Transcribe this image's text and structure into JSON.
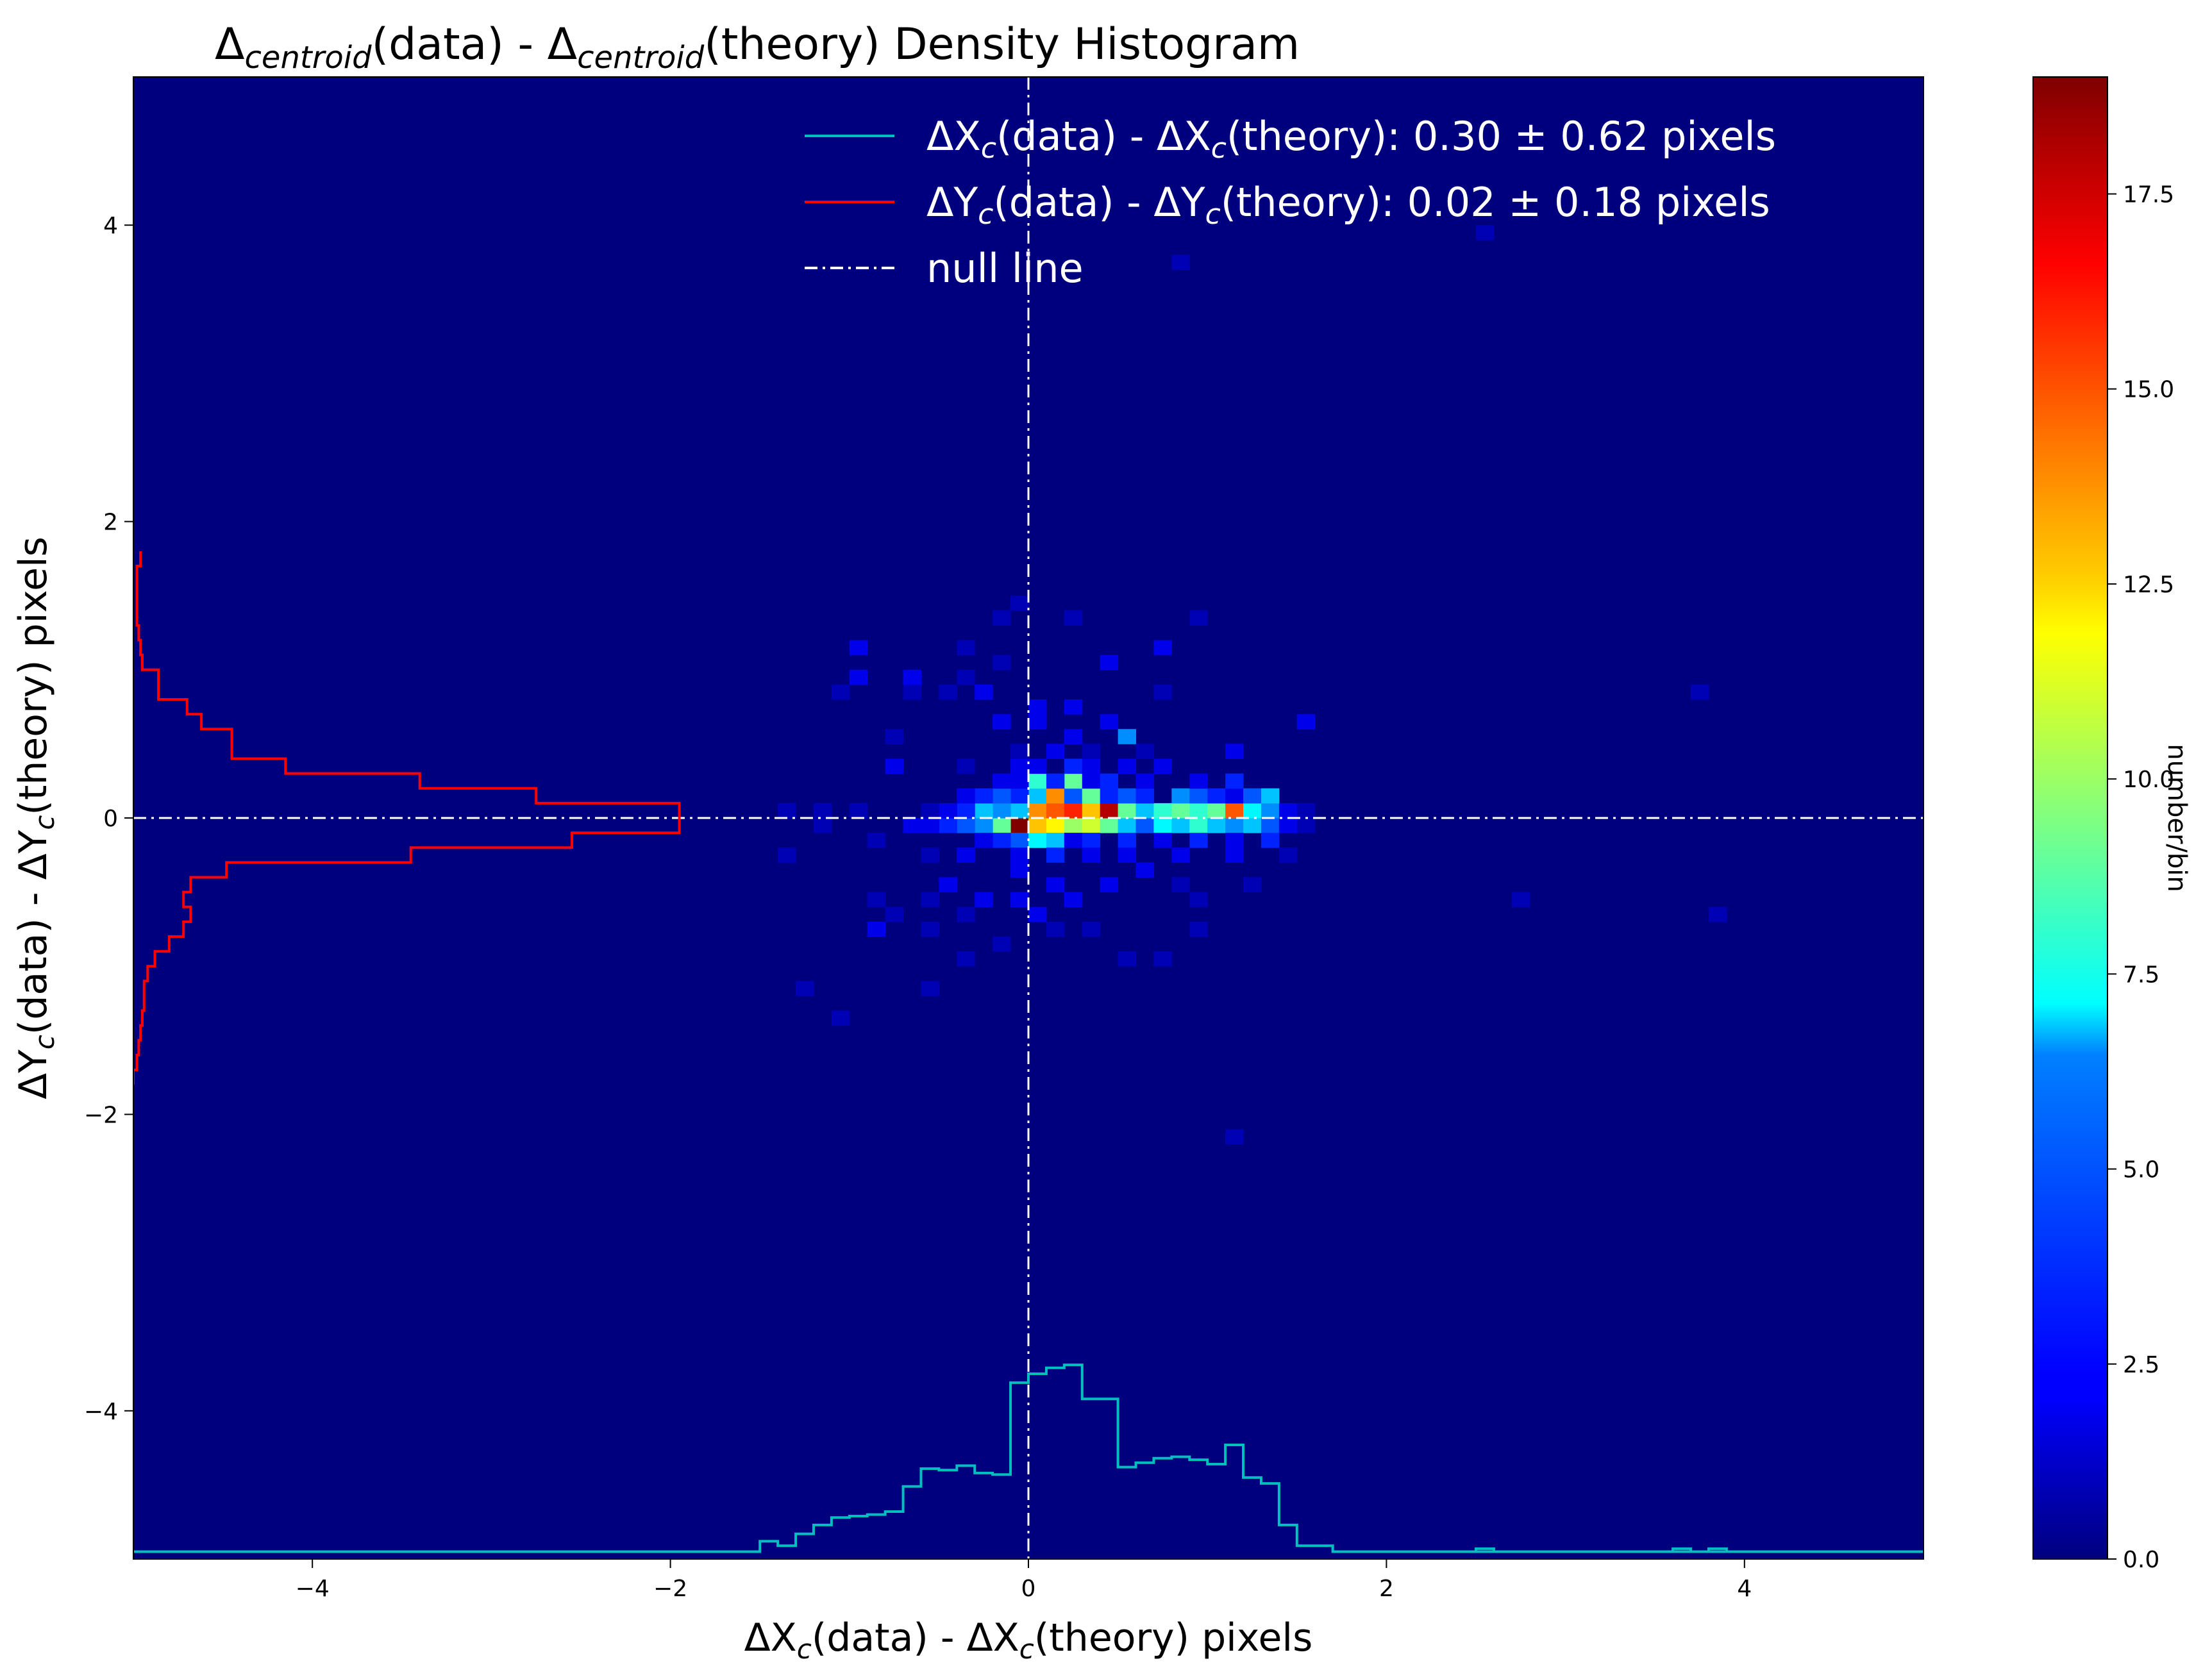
{
  "chart_data": {
    "type": "heatmap",
    "title_parts": {
      "delta": "Δ",
      "subscript": "centroid",
      "part1": "(data) - ",
      "part2": "(theory) Density Histogram"
    },
    "xlabel_parts": {
      "prefix": "ΔX",
      "sub": "c",
      "mid": "(data) - ΔX",
      "suffix": "(theory) pixels"
    },
    "ylabel_parts": {
      "prefix": "ΔY",
      "sub": "c",
      "mid": "(data) - ΔY",
      "suffix": "(theory) pixels"
    },
    "xlim": [
      -5,
      5
    ],
    "ylim": [
      -5,
      5
    ],
    "xticks": [
      -4,
      -2,
      0,
      2,
      4
    ],
    "xtick_labels": [
      "−4",
      "−2",
      "0",
      "2",
      "4"
    ],
    "yticks": [
      -4,
      -2,
      0,
      2,
      4
    ],
    "ytick_labels": [
      "−4",
      "−2",
      "0",
      "2",
      "4"
    ],
    "colormap": "jet",
    "colorbar": {
      "label": "number/bin",
      "range": [
        0,
        19
      ],
      "ticks": [
        0.0,
        2.5,
        5.0,
        7.5,
        10.0,
        12.5,
        15.0,
        17.5
      ],
      "tick_labels": [
        "0.0",
        "2.5",
        "5.0",
        "7.5",
        "10.0",
        "12.5",
        "15.0",
        "17.5"
      ]
    },
    "legend": {
      "position": "top-right",
      "entries": [
        {
          "prefix": "ΔX",
          "sub": "c",
          "mid": "(data) - ΔX",
          "sub2": "c",
          "rest": "(theory):   0.30 ±  0.62 pixels",
          "color": "#00bfbf",
          "style": "solid"
        },
        {
          "prefix": "ΔY",
          "sub": "c",
          "mid": "(data) - ΔY",
          "sub2": "c",
          "rest": "(theory):   0.02 ±  0.18 pixels",
          "color": "#ff0000",
          "style": "solid"
        },
        {
          "prefix": "null line",
          "sub": "",
          "mid": "",
          "sub2": "",
          "rest": "",
          "color": "#ffffff",
          "style": "dashdot"
        }
      ]
    },
    "null_line": {
      "x": 0,
      "y": 0,
      "color": "#ffffff"
    },
    "bin_width": 0.1,
    "bins": [
      [
        -0.05,
        -0.05,
        19
      ],
      [
        0.05,
        -0.05,
        13
      ],
      [
        0.15,
        -0.05,
        12
      ],
      [
        0.25,
        -0.05,
        10
      ],
      [
        0.35,
        -0.05,
        11
      ],
      [
        0.45,
        -0.05,
        9
      ],
      [
        -0.15,
        -0.05,
        9
      ],
      [
        -0.25,
        -0.05,
        5
      ],
      [
        -0.35,
        -0.05,
        4
      ],
      [
        -0.45,
        -0.05,
        3
      ],
      [
        -0.55,
        -0.05,
        2
      ],
      [
        -0.65,
        -0.05,
        2
      ],
      [
        0.55,
        -0.05,
        6
      ],
      [
        0.65,
        -0.05,
        4
      ],
      [
        0.75,
        -0.05,
        7
      ],
      [
        0.85,
        -0.05,
        6
      ],
      [
        0.95,
        -0.05,
        8
      ],
      [
        1.05,
        -0.05,
        6
      ],
      [
        1.15,
        -0.05,
        5
      ],
      [
        1.25,
        -0.05,
        6
      ],
      [
        1.35,
        -0.05,
        4
      ],
      [
        1.45,
        -0.05,
        2
      ],
      [
        1.55,
        -0.05,
        1
      ],
      [
        0.05,
        0.05,
        14
      ],
      [
        0.15,
        0.05,
        15
      ],
      [
        0.25,
        0.05,
        16
      ],
      [
        0.35,
        0.05,
        13
      ],
      [
        0.45,
        0.05,
        18
      ],
      [
        0.55,
        0.05,
        9
      ],
      [
        -0.05,
        0.05,
        6
      ],
      [
        -0.15,
        0.05,
        5
      ],
      [
        -0.25,
        0.05,
        6
      ],
      [
        -0.35,
        0.05,
        3
      ],
      [
        -0.45,
        0.05,
        2
      ],
      [
        -0.55,
        0.05,
        1
      ],
      [
        0.65,
        0.05,
        6
      ],
      [
        0.75,
        0.05,
        8
      ],
      [
        0.85,
        0.05,
        9
      ],
      [
        0.95,
        0.05,
        8
      ],
      [
        1.05,
        0.05,
        9
      ],
      [
        1.15,
        0.05,
        15
      ],
      [
        1.25,
        0.05,
        7
      ],
      [
        1.35,
        0.05,
        5
      ],
      [
        1.45,
        0.05,
        2
      ],
      [
        1.55,
        0.05,
        1
      ],
      [
        0.05,
        0.15,
        6
      ],
      [
        0.15,
        0.15,
        14
      ],
      [
        0.25,
        0.15,
        4
      ],
      [
        0.35,
        0.15,
        9
      ],
      [
        0.45,
        0.15,
        3
      ],
      [
        -0.05,
        0.15,
        3
      ],
      [
        -0.15,
        0.15,
        4
      ],
      [
        -0.25,
        0.15,
        3
      ],
      [
        -0.35,
        0.15,
        2
      ],
      [
        0.55,
        0.15,
        4
      ],
      [
        0.65,
        0.15,
        3
      ],
      [
        0.85,
        0.15,
        5
      ],
      [
        0.95,
        0.15,
        4
      ],
      [
        1.05,
        0.15,
        3
      ],
      [
        1.15,
        0.15,
        2
      ],
      [
        1.25,
        0.15,
        4
      ],
      [
        1.35,
        0.15,
        6
      ],
      [
        0.05,
        0.25,
        8
      ],
      [
        0.25,
        0.25,
        9
      ],
      [
        0.15,
        0.25,
        3
      ],
      [
        -0.05,
        0.25,
        2
      ],
      [
        -0.15,
        0.25,
        2
      ],
      [
        0.35,
        0.25,
        2
      ],
      [
        0.45,
        0.25,
        3
      ],
      [
        0.65,
        0.25,
        2
      ],
      [
        0.95,
        0.25,
        2
      ],
      [
        1.15,
        0.25,
        3
      ],
      [
        -0.05,
        -0.15,
        4
      ],
      [
        0.05,
        -0.15,
        7
      ],
      [
        0.15,
        -0.15,
        6
      ],
      [
        0.25,
        -0.15,
        2
      ],
      [
        -0.15,
        -0.15,
        3
      ],
      [
        -0.25,
        -0.15,
        2
      ],
      [
        0.35,
        -0.15,
        3
      ],
      [
        0.55,
        -0.15,
        3
      ],
      [
        0.75,
        -0.15,
        2
      ],
      [
        0.95,
        -0.15,
        3
      ],
      [
        1.15,
        -0.15,
        2
      ],
      [
        1.35,
        -0.15,
        3
      ],
      [
        -0.05,
        -0.25,
        2
      ],
      [
        0.15,
        -0.25,
        3
      ],
      [
        0.35,
        -0.25,
        2
      ],
      [
        0.55,
        -0.25,
        2
      ],
      [
        0.85,
        -0.25,
        2
      ],
      [
        1.15,
        -0.25,
        2
      ],
      [
        -0.35,
        -0.25,
        2
      ],
      [
        -0.55,
        -0.25,
        1
      ],
      [
        -1.35,
        -0.25,
        1
      ],
      [
        1.45,
        -0.25,
        1
      ],
      [
        0.05,
        0.35,
        2
      ],
      [
        0.25,
        0.35,
        3
      ],
      [
        -0.05,
        0.35,
        2
      ],
      [
        0.35,
        0.35,
        2
      ],
      [
        0.55,
        0.35,
        2
      ],
      [
        0.75,
        0.35,
        2
      ],
      [
        -0.75,
        0.35,
        2
      ],
      [
        -0.35,
        0.35,
        1
      ],
      [
        1.15,
        0.45,
        2
      ],
      [
        1.55,
        0.65,
        2
      ],
      [
        -0.75,
        0.55,
        1
      ],
      [
        -0.05,
        0.45,
        1
      ],
      [
        0.15,
        0.45,
        2
      ],
      [
        0.35,
        0.45,
        1
      ],
      [
        0.55,
        0.55,
        5
      ],
      [
        0.45,
        0.65,
        2
      ],
      [
        0.05,
        0.75,
        2
      ],
      [
        0.25,
        0.75,
        2
      ],
      [
        -0.25,
        0.85,
        2
      ],
      [
        -0.65,
        0.85,
        1
      ],
      [
        -0.45,
        0.85,
        1
      ],
      [
        -1.05,
        0.85,
        1
      ],
      [
        0.75,
        0.85,
        1
      ],
      [
        -0.65,
        0.95,
        2
      ],
      [
        -0.95,
        0.95,
        2
      ],
      [
        -0.35,
        0.95,
        1
      ],
      [
        0.05,
        0.65,
        2
      ],
      [
        0.25,
        0.55,
        2
      ],
      [
        -0.15,
        0.65,
        2
      ],
      [
        0.65,
        0.45,
        1
      ],
      [
        -0.15,
        1.05,
        1
      ],
      [
        0.45,
        1.05,
        2
      ],
      [
        0.75,
        1.15,
        2
      ],
      [
        -0.95,
        1.15,
        2
      ],
      [
        -0.35,
        1.15,
        1
      ],
      [
        -0.15,
        1.35,
        1
      ],
      [
        -0.05,
        1.45,
        1
      ],
      [
        0.25,
        1.35,
        1
      ],
      [
        0.95,
        1.35,
        1
      ],
      [
        0.85,
        3.75,
        1
      ],
      [
        2.55,
        3.95,
        1
      ],
      [
        3.75,
        0.85,
        1
      ],
      [
        -0.05,
        -0.35,
        2
      ],
      [
        0.15,
        -0.45,
        2
      ],
      [
        0.25,
        -0.55,
        2
      ],
      [
        -0.05,
        -0.55,
        2
      ],
      [
        0.45,
        -0.45,
        2
      ],
      [
        0.65,
        -0.35,
        2
      ],
      [
        -0.45,
        -0.45,
        2
      ],
      [
        -0.55,
        -0.55,
        1
      ],
      [
        -0.25,
        -0.55,
        2
      ],
      [
        0.05,
        -0.65,
        2
      ],
      [
        -0.35,
        -0.65,
        1
      ],
      [
        -0.75,
        -0.65,
        1
      ],
      [
        -0.85,
        -0.75,
        2
      ],
      [
        -0.55,
        -0.75,
        1
      ],
      [
        -0.15,
        -0.85,
        1
      ],
      [
        0.15,
        -0.75,
        1
      ],
      [
        0.35,
        -0.75,
        1
      ],
      [
        0.95,
        -0.75,
        1
      ],
      [
        -0.35,
        -0.95,
        1
      ],
      [
        0.55,
        -0.95,
        1
      ],
      [
        0.75,
        -0.95,
        1
      ],
      [
        -0.55,
        -1.15,
        1
      ],
      [
        -1.25,
        -1.15,
        1
      ],
      [
        -1.05,
        -1.35,
        1
      ],
      [
        0.95,
        -0.55,
        1
      ],
      [
        1.25,
        -0.45,
        1
      ],
      [
        2.75,
        -0.55,
        1
      ],
      [
        3.85,
        -0.65,
        1
      ],
      [
        1.15,
        -2.15,
        1
      ],
      [
        -0.85,
        -0.55,
        1
      ],
      [
        0.85,
        -0.45,
        1
      ],
      [
        -1.15,
        -0.05,
        1
      ],
      [
        -0.95,
        0.05,
        1
      ],
      [
        -1.15,
        0.05,
        1
      ],
      [
        -1.35,
        0.05,
        1
      ],
      [
        -0.85,
        -0.15,
        1
      ]
    ],
    "marginal_x": {
      "color": "#00bfbf",
      "edges": [
        -1.5,
        -1.4,
        -1.3,
        -1.2,
        -1.1,
        -1.0,
        -0.9,
        -0.8,
        -0.7,
        -0.6,
        -0.5,
        -0.4,
        -0.3,
        -0.2,
        -0.1,
        0.0,
        0.1,
        0.2,
        0.3,
        0.4,
        0.5,
        0.6,
        0.7,
        0.8,
        0.9,
        1.0,
        1.1,
        1.2,
        1.3,
        1.4,
        1.5,
        1.6,
        1.7
      ],
      "heights": [
        0.07,
        0.04,
        0.12,
        0.18,
        0.23,
        0.24,
        0.25,
        0.27,
        0.44,
        0.56,
        0.55,
        0.58,
        0.53,
        0.52,
        1.14,
        1.2,
        1.24,
        1.26,
        1.03,
        1.03,
        0.57,
        0.6,
        0.63,
        0.64,
        0.62,
        0.59,
        0.72,
        0.5,
        0.46,
        0.18,
        0.04,
        0.04
      ],
      "extra": [
        [
          2.5,
          2.6,
          0.02
        ],
        [
          3.6,
          3.7,
          0.02
        ],
        [
          3.8,
          3.9,
          0.02
        ]
      ],
      "baseline": -4.95
    },
    "marginal_y": {
      "color": "#ff0000",
      "edges": [
        -1.8,
        -1.7,
        -1.6,
        -1.5,
        -1.4,
        -1.3,
        -1.2,
        -1.1,
        -1.0,
        -0.9,
        -0.8,
        -0.7,
        -0.6,
        -0.5,
        -0.4,
        -0.3,
        -0.2,
        -0.1,
        0.0,
        0.1,
        0.2,
        0.3,
        0.4,
        0.5,
        0.6,
        0.7,
        0.8,
        0.9,
        1.0,
        1.1,
        1.2,
        1.3,
        1.4,
        1.5,
        1.6,
        1.7,
        1.8
      ],
      "widths": [
        0.0,
        0.02,
        0.03,
        0.04,
        0.05,
        0.06,
        0.06,
        0.08,
        0.12,
        0.2,
        0.28,
        0.32,
        0.28,
        0.32,
        0.52,
        1.55,
        2.45,
        3.05,
        3.05,
        2.25,
        1.6,
        0.85,
        0.55,
        0.55,
        0.38,
        0.3,
        0.14,
        0.14,
        0.05,
        0.04,
        0.03,
        0.02,
        0.02,
        0.02,
        0.02,
        0.04
      ],
      "baseline": -5.0
    }
  }
}
